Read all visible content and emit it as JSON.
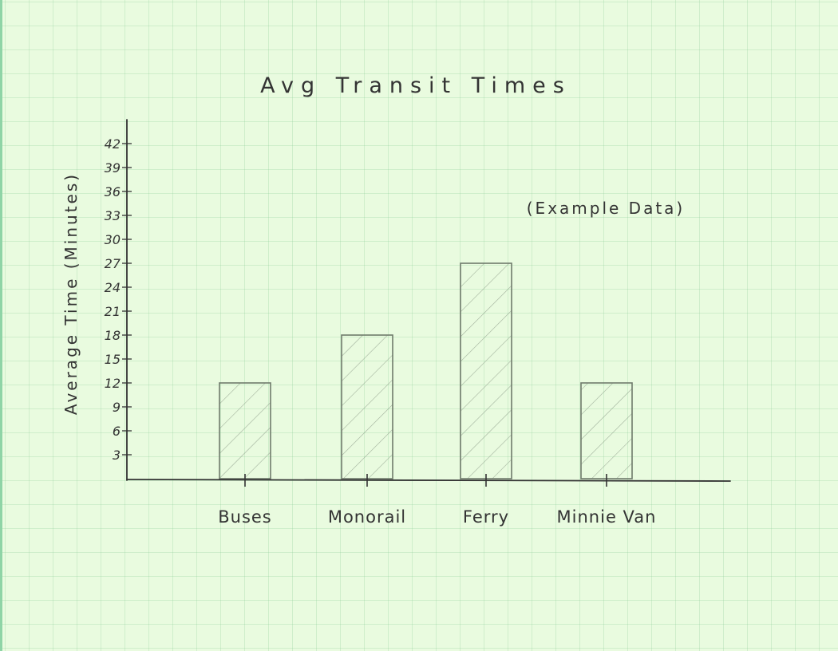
{
  "chart_data": {
    "type": "bar",
    "title": "Avg Transit Times",
    "subtitle": "(Example Data)",
    "xlabel": "",
    "ylabel": "Average Time (Minutes)",
    "categories": [
      "Buses",
      "Monorail",
      "Ferry",
      "Minnie Van"
    ],
    "values": [
      12,
      18,
      27,
      12
    ],
    "ylim": [
      0,
      42
    ],
    "yticks": [
      3,
      6,
      9,
      12,
      15,
      18,
      21,
      24,
      27,
      30,
      33,
      36,
      39,
      42
    ],
    "grid": true,
    "legend": "none",
    "colors": {
      "ink": "#333333",
      "pencil": "#6f7a6c",
      "hatch": "#8a9886",
      "paper": "#e9fbdf",
      "grid": "#8ccd96"
    }
  }
}
